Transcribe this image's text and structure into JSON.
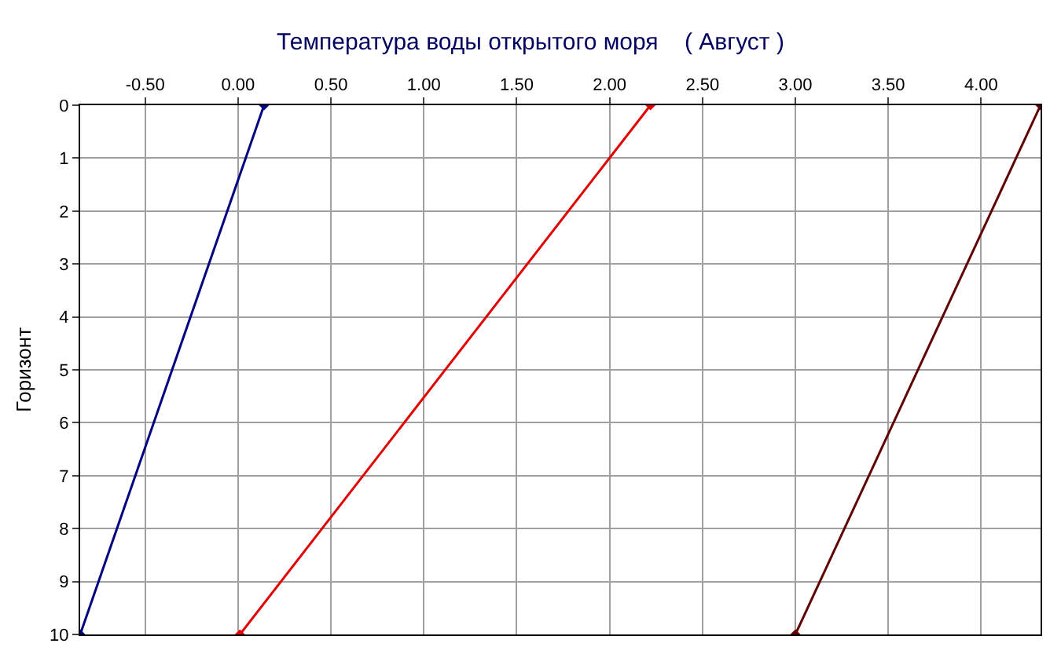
{
  "chart_data": {
    "type": "line",
    "title": "Температура воды открытого моря    ( Август )",
    "ylabel": "Горизонт",
    "series": [
      {
        "color": "#000080",
        "x": [
          0.14,
          -0.85
        ],
        "values": [
          0,
          10
        ]
      },
      {
        "color": "#e00000",
        "x": [
          2.22,
          0.01
        ],
        "values": [
          0,
          10
        ]
      },
      {
        "color": "#600000",
        "x": [
          4.32,
          3.0
        ],
        "values": [
          0,
          10
        ]
      }
    ],
    "xlim": [
      -0.85,
      4.32
    ],
    "xticks": [
      {
        "value": -0.5,
        "label": "-0.50"
      },
      {
        "value": 0,
        "label": "0.00"
      },
      {
        "value": 0.5,
        "label": "0.50"
      },
      {
        "value": 1,
        "label": "1.00"
      },
      {
        "value": 1.5,
        "label": "1.50"
      },
      {
        "value": 2,
        "label": "2.00"
      },
      {
        "value": 2.5,
        "label": "2.50"
      },
      {
        "value": 3,
        "label": "3.00"
      },
      {
        "value": 3.5,
        "label": "3.50"
      },
      {
        "value": 4,
        "label": "4.00"
      }
    ],
    "ylim": [
      10,
      0
    ],
    "yticks": [
      0,
      1,
      2,
      3,
      4,
      5,
      6,
      7,
      8,
      9,
      10
    ],
    "grid": true,
    "marker": "diamond",
    "line_style": "solid"
  }
}
